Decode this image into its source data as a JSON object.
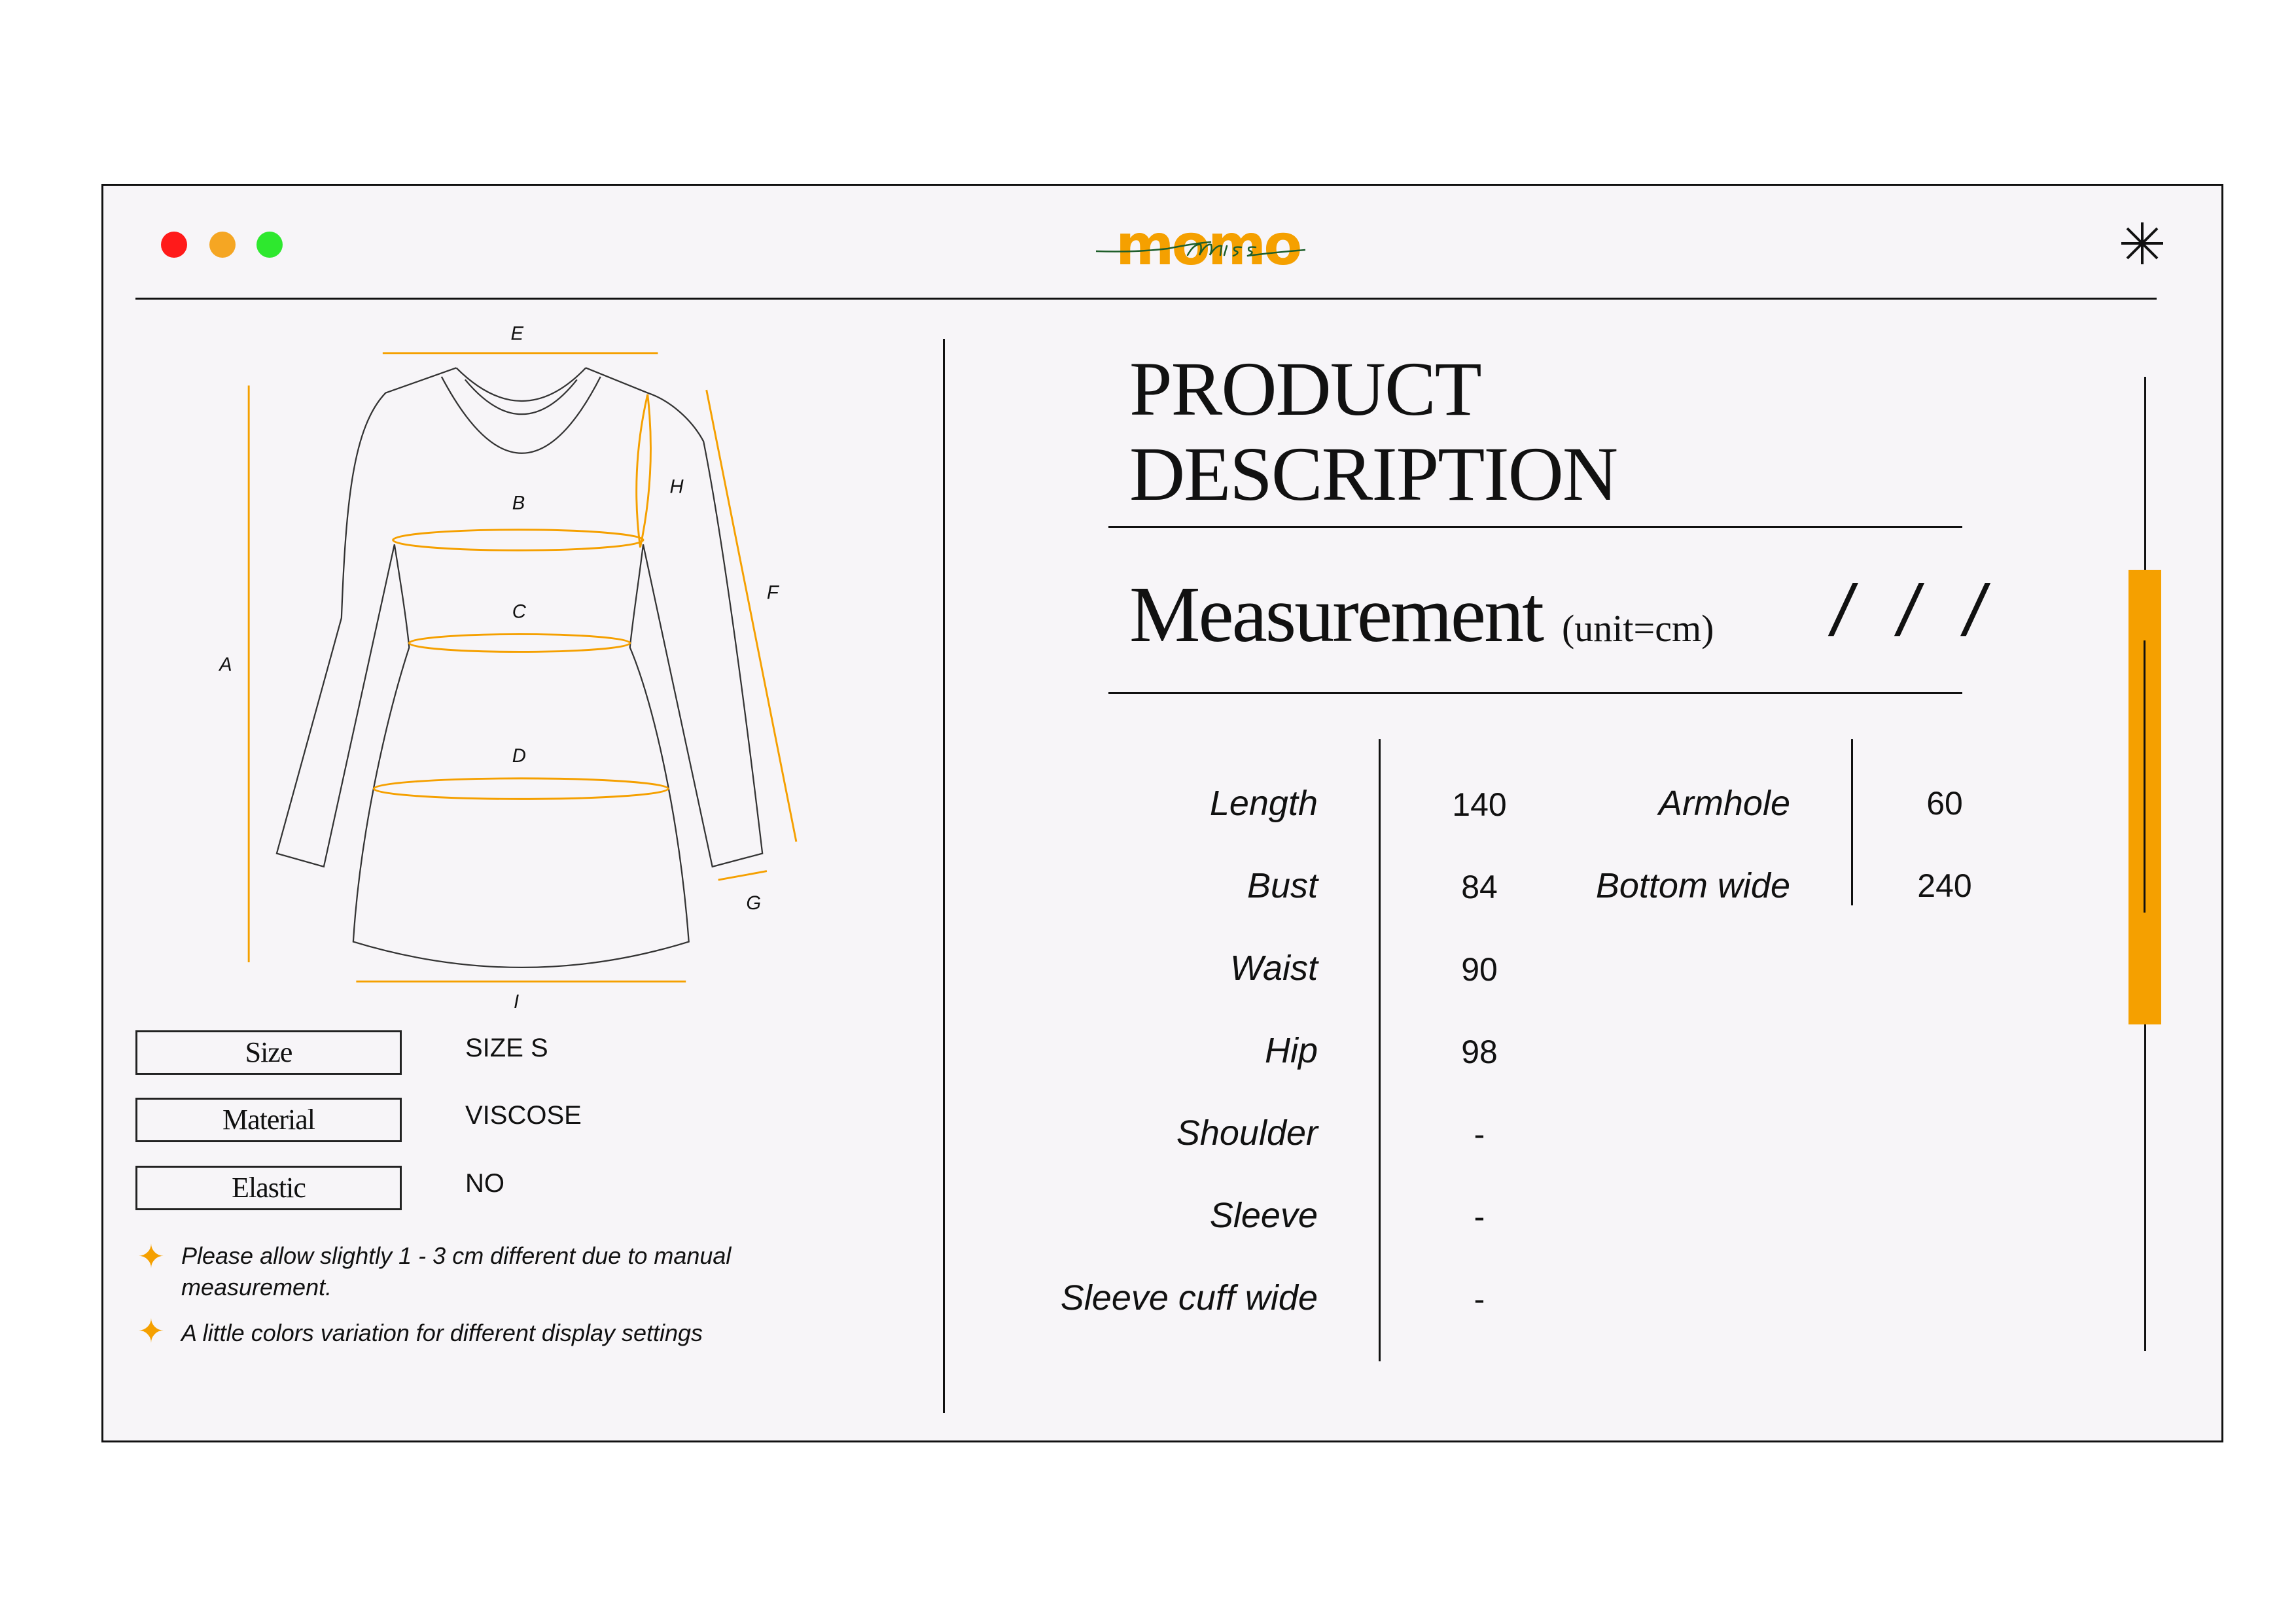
{
  "window": {
    "controls": [
      {
        "name": "close",
        "color": "#ff1a1a"
      },
      {
        "name": "minimize",
        "color": "#f5a623"
      },
      {
        "name": "maximize",
        "color": "#2ee82e"
      }
    ],
    "logo": {
      "main": "momo",
      "script": "miss",
      "main_color": "#f5a000",
      "script_color": "#1e5e2a"
    },
    "menu_icon": "asterisk-icon"
  },
  "diagram": {
    "labels": {
      "A": "A",
      "B": "B",
      "C": "C",
      "D": "D",
      "E": "E",
      "F": "F",
      "G": "G",
      "H": "H",
      "I": "I"
    },
    "accent": "#f5a000"
  },
  "attributes": [
    {
      "label": "Size",
      "value": "SIZE S"
    },
    {
      "label": "Material",
      "value": "VISCOSE"
    },
    {
      "label": "Elastic",
      "value": "NO"
    }
  ],
  "notes": [
    "Please allow slightly 1 - 3 cm different due to manual measurement.",
    "A little colors variation for different display settings"
  ],
  "product": {
    "title_line1": "PRODUCT",
    "title_line2": "DESCRIPTION",
    "measurement_title": "Measurement",
    "unit": "(unit=cm)",
    "slashes": "/ / /"
  },
  "measurements_left": [
    {
      "label": "Length",
      "value": "140"
    },
    {
      "label": "Bust",
      "value": "84"
    },
    {
      "label": "Waist",
      "value": "90"
    },
    {
      "label": "Hip",
      "value": "98"
    },
    {
      "label": "Shoulder",
      "value": "-"
    },
    {
      "label": "Sleeve",
      "value": "-"
    },
    {
      "label": "Sleeve cuff wide",
      "value": "-"
    }
  ],
  "measurements_right": [
    {
      "label": "Armhole",
      "value": "60"
    },
    {
      "label": "Bottom wide",
      "value": "240"
    }
  ],
  "scrollbar": {
    "thumb_color": "#f5a000",
    "position_percent": 30
  }
}
